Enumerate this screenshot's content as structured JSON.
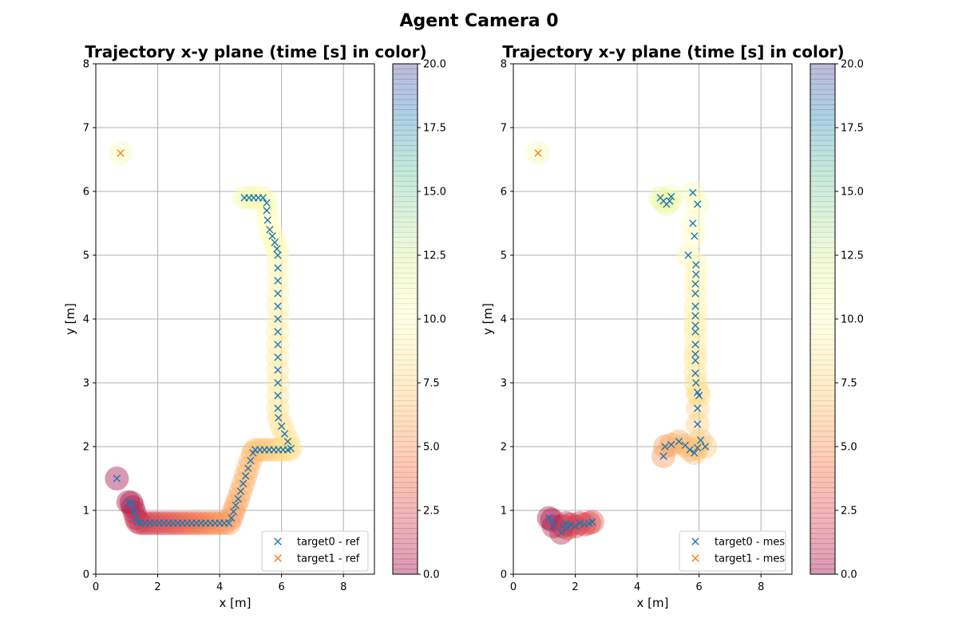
{
  "suptitle": "Agent Camera 0",
  "colorbar": {
    "ticks": [
      "0.0",
      "2.5",
      "5.0",
      "7.5",
      "10.0",
      "12.5",
      "15.0",
      "17.5",
      "20.0"
    ],
    "range": [
      0,
      20
    ],
    "colormap": "Spectral",
    "alpha": 0.4
  },
  "colors": {
    "target0": "#1f77b4",
    "target1": "#ff7f0e",
    "grid": "#b0b0b0"
  },
  "chart_data": [
    {
      "type": "scatter",
      "title": "Trajectory x-y plane  (time [s] in color)",
      "xlabel": "x [m]",
      "ylabel": "y [m]",
      "xlim": [
        0,
        9
      ],
      "ylim": [
        0,
        8
      ],
      "xticks": [
        "0",
        "2",
        "4",
        "6",
        "8"
      ],
      "yticks": [
        "0",
        "1",
        "2",
        "3",
        "4",
        "5",
        "6",
        "7",
        "8"
      ],
      "grid": true,
      "legend_position": "bottom-right",
      "legend": [
        "target0 - ref",
        "target1 - ref"
      ],
      "series": [
        {
          "name": "target0 - ref",
          "marker": "x",
          "points": [
            [
              0.68,
              1.5,
              0.0
            ],
            [
              1.05,
              1.13,
              0.3
            ],
            [
              1.15,
              1.12,
              0.5
            ],
            [
              1.2,
              1.05,
              0.7
            ],
            [
              1.25,
              0.97,
              0.9
            ],
            [
              1.3,
              0.88,
              1.1
            ],
            [
              1.35,
              0.82,
              1.3
            ],
            [
              1.45,
              0.8,
              1.5
            ],
            [
              1.6,
              0.8,
              1.7
            ],
            [
              1.75,
              0.8,
              1.9
            ],
            [
              1.9,
              0.8,
              2.1
            ],
            [
              2.05,
              0.8,
              2.3
            ],
            [
              2.2,
              0.8,
              2.5
            ],
            [
              2.35,
              0.8,
              2.7
            ],
            [
              2.5,
              0.8,
              2.9
            ],
            [
              2.65,
              0.8,
              3.1
            ],
            [
              2.8,
              0.8,
              3.3
            ],
            [
              2.95,
              0.8,
              3.5
            ],
            [
              3.1,
              0.8,
              3.7
            ],
            [
              3.25,
              0.8,
              3.9
            ],
            [
              3.4,
              0.8,
              4.1
            ],
            [
              3.55,
              0.8,
              4.3
            ],
            [
              3.7,
              0.8,
              4.5
            ],
            [
              3.85,
              0.8,
              4.7
            ],
            [
              4.0,
              0.8,
              4.9
            ],
            [
              4.15,
              0.8,
              5.1
            ],
            [
              4.3,
              0.8,
              5.3
            ],
            [
              4.38,
              0.88,
              5.4
            ],
            [
              4.45,
              0.98,
              5.5
            ],
            [
              4.52,
              1.08,
              5.6
            ],
            [
              4.6,
              1.18,
              5.7
            ],
            [
              4.68,
              1.3,
              5.8
            ],
            [
              4.76,
              1.42,
              5.9
            ],
            [
              4.84,
              1.54,
              6.0
            ],
            [
              4.92,
              1.66,
              6.1
            ],
            [
              5.0,
              1.78,
              6.2
            ],
            [
              5.08,
              1.9,
              6.3
            ],
            [
              5.15,
              1.95,
              6.4
            ],
            [
              5.3,
              1.95,
              6.6
            ],
            [
              5.45,
              1.95,
              6.8
            ],
            [
              5.6,
              1.95,
              7.0
            ],
            [
              5.75,
              1.95,
              7.2
            ],
            [
              5.9,
              1.95,
              7.4
            ],
            [
              6.05,
              1.95,
              7.6
            ],
            [
              6.2,
              1.95,
              7.8
            ],
            [
              6.3,
              1.97,
              7.9
            ],
            [
              6.2,
              2.08,
              8.0
            ],
            [
              6.1,
              2.2,
              8.1
            ],
            [
              6.0,
              2.32,
              8.2
            ],
            [
              5.9,
              2.45,
              8.3
            ],
            [
              5.88,
              2.6,
              8.4
            ],
            [
              5.88,
              2.8,
              8.5
            ],
            [
              5.88,
              3.0,
              8.6
            ],
            [
              5.88,
              3.2,
              8.7
            ],
            [
              5.88,
              3.4,
              8.8
            ],
            [
              5.88,
              3.6,
              8.9
            ],
            [
              5.88,
              3.8,
              9.0
            ],
            [
              5.88,
              4.0,
              9.1
            ],
            [
              5.88,
              4.2,
              9.2
            ],
            [
              5.88,
              4.4,
              9.3
            ],
            [
              5.88,
              4.6,
              9.4
            ],
            [
              5.88,
              4.8,
              9.5
            ],
            [
              5.88,
              5.0,
              9.6
            ],
            [
              5.85,
              5.1,
              9.7
            ],
            [
              5.78,
              5.2,
              9.8
            ],
            [
              5.7,
              5.3,
              9.9
            ],
            [
              5.62,
              5.4,
              10.0
            ],
            [
              5.55,
              5.55,
              10.1
            ],
            [
              5.52,
              5.7,
              10.2
            ],
            [
              5.52,
              5.82,
              10.3
            ],
            [
              5.4,
              5.9,
              10.4
            ],
            [
              5.25,
              5.9,
              10.5
            ],
            [
              5.1,
              5.9,
              10.6
            ],
            [
              4.95,
              5.9,
              10.7
            ],
            [
              4.8,
              5.9,
              10.8
            ]
          ]
        },
        {
          "name": "target1 - ref",
          "marker": "x",
          "points": [
            [
              0.8,
              6.6,
              10.6
            ]
          ]
        }
      ]
    },
    {
      "type": "scatter",
      "title": "Trajectory x-y plane  (time [s] in color)",
      "xlabel": "x [m]",
      "ylabel": "y [m]",
      "xlim": [
        0,
        9
      ],
      "ylim": [
        0,
        8
      ],
      "xticks": [
        "0",
        "2",
        "4",
        "6",
        "8"
      ],
      "yticks": [
        "0",
        "1",
        "2",
        "3",
        "4",
        "5",
        "6",
        "7",
        "8"
      ],
      "grid": true,
      "legend_position": "bottom-right",
      "legend": [
        "target0 - mes",
        "target1 - mes"
      ],
      "series": [
        {
          "name": "target0 - mes",
          "marker": "x",
          "points": [
            [
              1.15,
              0.88,
              0.3
            ],
            [
              1.25,
              0.85,
              0.5
            ],
            [
              1.3,
              0.75,
              0.7
            ],
            [
              1.55,
              0.65,
              0.9
            ],
            [
              1.6,
              0.75,
              1.1
            ],
            [
              1.7,
              0.8,
              1.3
            ],
            [
              1.85,
              0.78,
              1.5
            ],
            [
              2.0,
              0.75,
              1.7
            ],
            [
              2.15,
              0.8,
              1.9
            ],
            [
              2.3,
              0.78,
              2.1
            ],
            [
              2.45,
              0.8,
              2.3
            ],
            [
              2.55,
              0.82,
              2.5
            ],
            [
              1.75,
              0.72,
              2.7
            ],
            [
              4.85,
              1.85,
              5.2
            ],
            [
              4.9,
              2.0,
              5.4
            ],
            [
              5.1,
              2.03,
              5.6
            ],
            [
              5.35,
              2.08,
              5.8
            ],
            [
              5.55,
              2.02,
              6.0
            ],
            [
              5.7,
              1.95,
              6.2
            ],
            [
              5.85,
              1.9,
              6.4
            ],
            [
              5.95,
              1.98,
              6.6
            ],
            [
              6.05,
              2.1,
              6.8
            ],
            [
              6.2,
              2.0,
              7.0
            ],
            [
              5.95,
              2.35,
              7.2
            ],
            [
              5.95,
              2.6,
              7.4
            ],
            [
              6.0,
              2.8,
              7.6
            ],
            [
              5.95,
              2.85,
              7.8
            ],
            [
              5.9,
              3.0,
              8.0
            ],
            [
              5.88,
              3.15,
              8.2
            ],
            [
              5.88,
              3.35,
              8.4
            ],
            [
              5.88,
              3.45,
              8.6
            ],
            [
              5.88,
              3.6,
              8.8
            ],
            [
              5.88,
              3.8,
              9.0
            ],
            [
              5.88,
              3.9,
              9.1
            ],
            [
              5.88,
              4.05,
              9.2
            ],
            [
              5.88,
              4.2,
              9.3
            ],
            [
              5.88,
              4.4,
              9.4
            ],
            [
              5.88,
              4.55,
              9.5
            ],
            [
              5.9,
              4.7,
              9.6
            ],
            [
              5.9,
              4.85,
              9.7
            ],
            [
              5.65,
              5.0,
              9.8
            ],
            [
              5.85,
              5.3,
              10.0
            ],
            [
              5.8,
              5.5,
              10.2
            ],
            [
              5.95,
              5.8,
              10.4
            ],
            [
              5.8,
              5.98,
              10.6
            ],
            [
              5.05,
              5.85,
              10.8
            ],
            [
              5.1,
              5.92,
              11.0
            ],
            [
              4.95,
              5.8,
              11.2
            ],
            [
              4.75,
              5.9,
              11.4
            ],
            [
              4.85,
              5.85,
              11.6
            ]
          ]
        },
        {
          "name": "target1 - mes",
          "marker": "x",
          "points": [
            [
              0.8,
              6.6,
              10.6
            ]
          ]
        }
      ]
    }
  ]
}
